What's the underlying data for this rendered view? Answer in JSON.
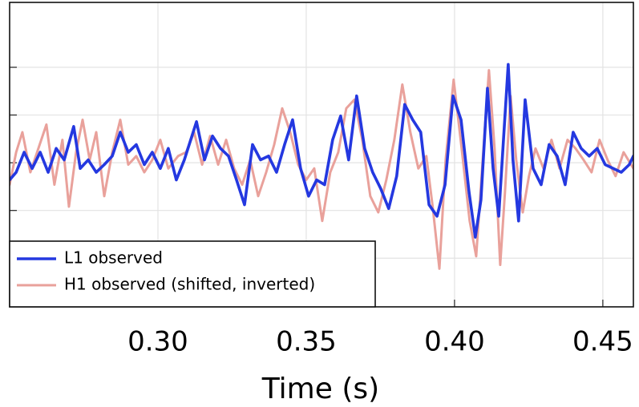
{
  "chart_data": {
    "type": "line",
    "x_label": "Time (s)",
    "xlim": [
      0.25,
      0.4603
    ],
    "ylim": [
      -1.51,
      1.68
    ],
    "xticks": [
      {
        "value": 0.3,
        "label": "0.30"
      },
      0.35,
      {
        "value": 0.4,
        "label": "0.40"
      },
      0.45
    ],
    "yticks": [
      -1,
      -0.5,
      0,
      0.5,
      1
    ],
    "grid": true,
    "legend": "lower left",
    "series": [
      {
        "name": "L1 observed",
        "color": "#2438e0",
        "x": [
          0.25,
          0.2522,
          0.2549,
          0.2576,
          0.2603,
          0.263,
          0.2657,
          0.2684,
          0.2716,
          0.2738,
          0.2765,
          0.2792,
          0.2819,
          0.2846,
          0.2873,
          0.29,
          0.2927,
          0.2954,
          0.2981,
          0.3008,
          0.3035,
          0.3062,
          0.3089,
          0.313,
          0.3157,
          0.3184,
          0.3211,
          0.3238,
          0.3265,
          0.3292,
          0.3319,
          0.3346,
          0.3373,
          0.34,
          0.3427,
          0.3454,
          0.3481,
          0.3508,
          0.3535,
          0.3562,
          0.3589,
          0.3616,
          0.3643,
          0.367,
          0.3697,
          0.3724,
          0.3751,
          0.3778,
          0.3805,
          0.3832,
          0.3859,
          0.3886,
          0.3914,
          0.3941,
          0.3968,
          0.3995,
          0.4022,
          0.4049,
          0.407,
          0.4089,
          0.4111,
          0.413,
          0.4149,
          0.4165,
          0.4181,
          0.4197,
          0.4216,
          0.4238,
          0.4265,
          0.4292,
          0.4319,
          0.4346,
          0.4373,
          0.44,
          0.4427,
          0.4454,
          0.4481,
          0.4508,
          0.4535,
          0.4562,
          0.4589,
          0.4603
        ],
        "values": [
          -0.18,
          -0.1,
          0.11,
          -0.06,
          0.11,
          -0.1,
          0.15,
          0.03,
          0.38,
          -0.06,
          0.03,
          -0.1,
          -0.02,
          0.07,
          0.32,
          0.11,
          0.19,
          -0.02,
          0.11,
          -0.06,
          0.15,
          -0.18,
          0.03,
          0.43,
          0.03,
          0.28,
          0.15,
          0.07,
          -0.18,
          -0.44,
          0.19,
          0.03,
          0.07,
          -0.1,
          0.19,
          0.45,
          -0.06,
          -0.35,
          -0.18,
          -0.23,
          0.24,
          0.49,
          0.03,
          0.7,
          0.15,
          -0.1,
          -0.27,
          -0.48,
          -0.14,
          0.61,
          0.45,
          0.32,
          -0.44,
          -0.56,
          -0.23,
          0.7,
          0.45,
          -0.31,
          -0.78,
          -0.39,
          0.78,
          -0.06,
          -0.56,
          0.24,
          1.03,
          0.03,
          -0.61,
          0.66,
          -0.06,
          -0.23,
          0.19,
          0.07,
          -0.23,
          0.32,
          0.15,
          0.07,
          0.15,
          -0.02,
          -0.06,
          -0.1,
          -0.02,
          0.07
        ]
      },
      {
        "name": "H1 observed (shifted, inverted)",
        "color": "#e9a19b",
        "x": [
          0.25,
          0.2522,
          0.2543,
          0.257,
          0.2597,
          0.2624,
          0.2651,
          0.2678,
          0.27,
          0.2724,
          0.2746,
          0.277,
          0.2792,
          0.2819,
          0.2846,
          0.2873,
          0.29,
          0.2927,
          0.2954,
          0.2981,
          0.3008,
          0.3035,
          0.3068,
          0.3095,
          0.3122,
          0.3149,
          0.3176,
          0.3203,
          0.323,
          0.3257,
          0.3284,
          0.3311,
          0.3338,
          0.3365,
          0.3392,
          0.3419,
          0.3446,
          0.3473,
          0.35,
          0.3527,
          0.3554,
          0.3581,
          0.3608,
          0.3635,
          0.3662,
          0.3689,
          0.3716,
          0.3743,
          0.377,
          0.3797,
          0.3824,
          0.3851,
          0.3878,
          0.3905,
          0.3927,
          0.3949,
          0.397,
          0.3997,
          0.4024,
          0.4051,
          0.4073,
          0.4095,
          0.4116,
          0.4135,
          0.4154,
          0.417,
          0.4189,
          0.4208,
          0.423,
          0.4251,
          0.4273,
          0.43,
          0.4327,
          0.4354,
          0.4381,
          0.4408,
          0.4435,
          0.4462,
          0.4489,
          0.4516,
          0.4543,
          0.457,
          0.4603
        ],
        "values": [
          -0.23,
          0.11,
          0.32,
          -0.1,
          0.15,
          0.4,
          -0.23,
          0.24,
          -0.46,
          0.11,
          0.45,
          0.03,
          0.32,
          -0.35,
          0.11,
          0.45,
          -0.02,
          0.07,
          -0.1,
          0.03,
          0.24,
          -0.06,
          0.07,
          0.11,
          0.32,
          -0.02,
          0.28,
          -0.02,
          0.24,
          -0.06,
          -0.23,
          0.03,
          -0.35,
          -0.1,
          0.19,
          0.57,
          0.32,
          -0.02,
          -0.18,
          -0.06,
          -0.61,
          -0.1,
          0.11,
          0.57,
          0.66,
          0.24,
          -0.35,
          -0.52,
          -0.18,
          0.24,
          0.82,
          0.32,
          -0.06,
          0.07,
          -0.48,
          -1.11,
          0.03,
          0.87,
          0.15,
          -0.61,
          -0.98,
          0.03,
          0.97,
          0.15,
          -1.07,
          -0.31,
          0.7,
          0.03,
          -0.52,
          -0.14,
          0.15,
          -0.06,
          0.24,
          -0.06,
          0.24,
          0.15,
          0.03,
          -0.1,
          0.24,
          0.03,
          -0.14,
          0.11,
          -0.06
        ]
      }
    ]
  }
}
